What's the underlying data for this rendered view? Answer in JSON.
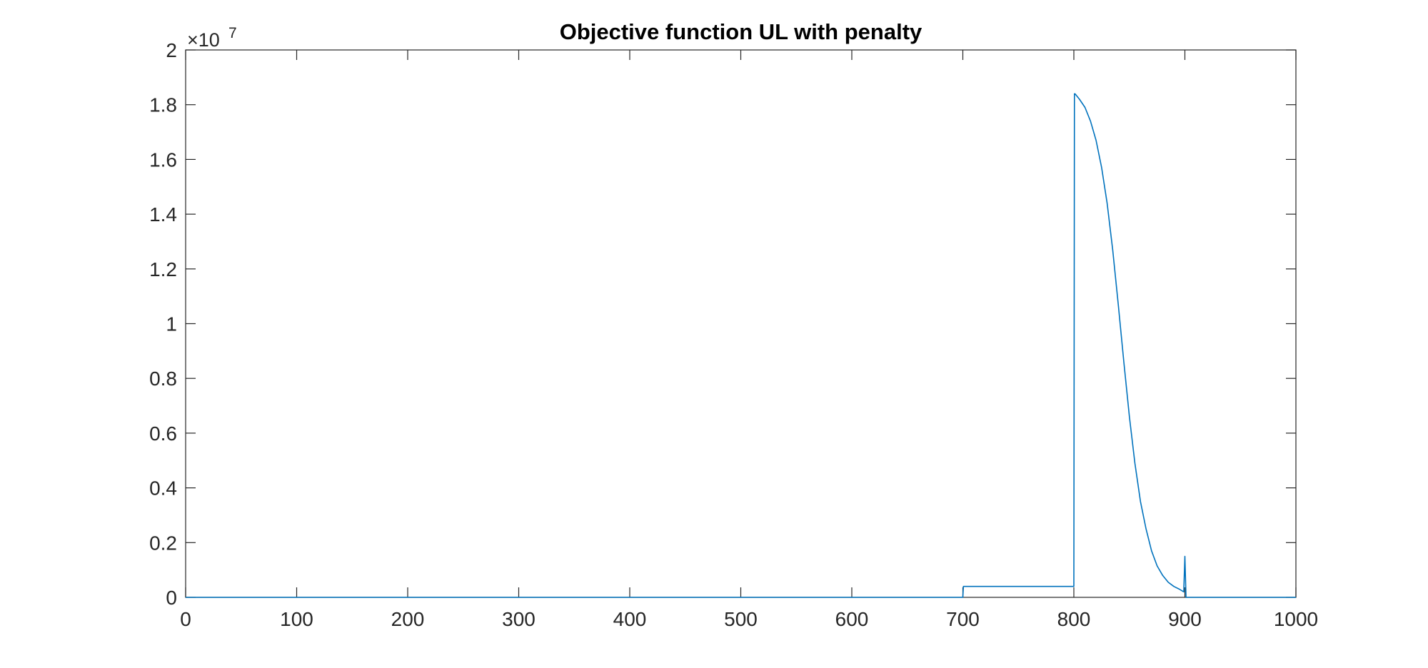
{
  "chart_data": {
    "type": "line",
    "title": "Objective function UL with penalty",
    "xlabel": "",
    "ylabel": "",
    "xlim": [
      0,
      1000
    ],
    "ylim": [
      0,
      2
    ],
    "y_exponent_label": {
      "base": "×10",
      "power": "7"
    },
    "x_ticks": [
      "0",
      "100",
      "200",
      "300",
      "400",
      "500",
      "600",
      "700",
      "800",
      "900",
      "1000"
    ],
    "x_tick_values": [
      0,
      100,
      200,
      300,
      400,
      500,
      600,
      700,
      800,
      900,
      1000
    ],
    "y_ticks": [
      "0",
      "0.2",
      "0.4",
      "0.6",
      "0.8",
      "1",
      "1.2",
      "1.4",
      "1.6",
      "1.8",
      "2"
    ],
    "y_tick_values": [
      0,
      0.2,
      0.4,
      0.6,
      0.8,
      1.0,
      1.2,
      1.4,
      1.6,
      1.8,
      2.0
    ],
    "grid": false,
    "series": [
      {
        "color": "#0072BD",
        "x": [
          0,
          700,
          700.5,
          701,
          800,
          800.5,
          801,
          805,
          810,
          815,
          820,
          825,
          830,
          835,
          840,
          845,
          850,
          855,
          860,
          865,
          870,
          875,
          880,
          885,
          890,
          895,
          899,
          900,
          901,
          902,
          1000
        ],
        "y": [
          0,
          0,
          0.04,
          0.04,
          0.04,
          1.84,
          1.84,
          1.82,
          1.79,
          1.74,
          1.67,
          1.57,
          1.44,
          1.27,
          1.07,
          0.86,
          0.66,
          0.49,
          0.35,
          0.25,
          0.17,
          0.115,
          0.08,
          0.055,
          0.04,
          0.03,
          0.02,
          0.15,
          0.0,
          0.0,
          0.0
        ]
      }
    ]
  }
}
